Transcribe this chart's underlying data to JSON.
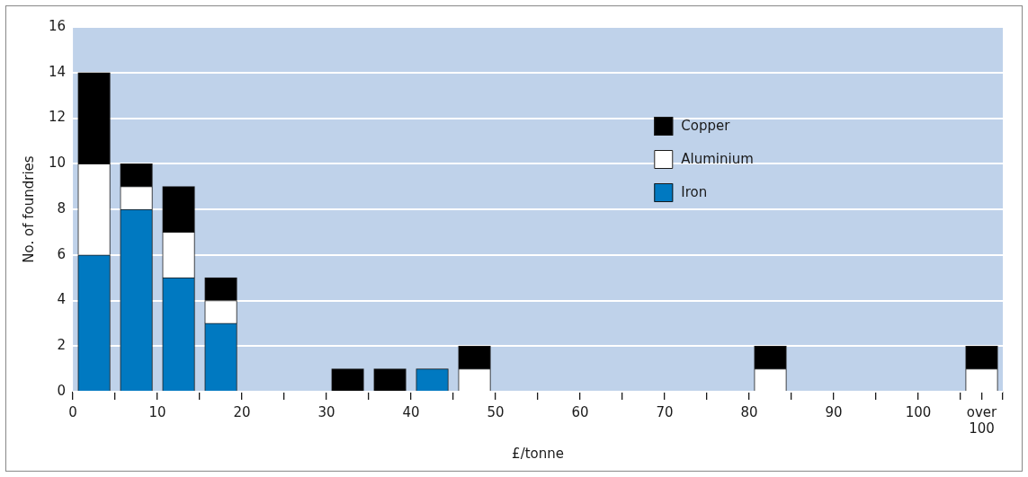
{
  "chart_data": {
    "type": "bar",
    "stacked": true,
    "x": [
      2.5,
      7.5,
      12.5,
      17.5,
      32.5,
      37.5,
      42.5,
      47.5,
      82.5,
      107.5
    ],
    "series": [
      {
        "name": "Iron",
        "color": "#0079c1",
        "values": [
          6,
          8,
          5,
          3,
          null,
          null,
          1,
          null,
          null,
          null
        ]
      },
      {
        "name": "Aluminium",
        "color": "#ffffff",
        "values": [
          4,
          1,
          2,
          1,
          null,
          null,
          null,
          1,
          1,
          1
        ]
      },
      {
        "name": "Copper",
        "color": "#000000",
        "values": [
          4,
          1,
          2,
          1,
          1,
          1,
          null,
          1,
          1,
          1
        ]
      }
    ],
    "xlabel": "£/tonne",
    "ylabel": "No. of foundries",
    "xlim": [
      0,
      110
    ],
    "xticks": [
      0,
      {
        "value": 5,
        "label": null
      },
      10,
      {
        "value": 15,
        "label": null
      },
      20,
      {
        "value": 25,
        "label": null
      },
      30,
      {
        "value": 35,
        "label": null
      },
      40,
      {
        "value": 45,
        "label": null
      },
      50,
      {
        "value": 55,
        "label": null
      },
      60,
      {
        "value": 65,
        "label": null
      },
      70,
      {
        "value": 75,
        "label": null
      },
      80,
      {
        "value": 85,
        "label": null
      },
      90,
      {
        "value": 95,
        "label": null
      },
      100,
      {
        "value": 105,
        "label": null
      },
      {
        "value": 107.5,
        "label": "over 100"
      },
      {
        "value": 110,
        "label": null
      }
    ],
    "ylim": [
      0,
      16
    ],
    "yticks": [
      0,
      2,
      4,
      6,
      8,
      10,
      12,
      14,
      16
    ],
    "grid": "y",
    "legend": "top right"
  }
}
